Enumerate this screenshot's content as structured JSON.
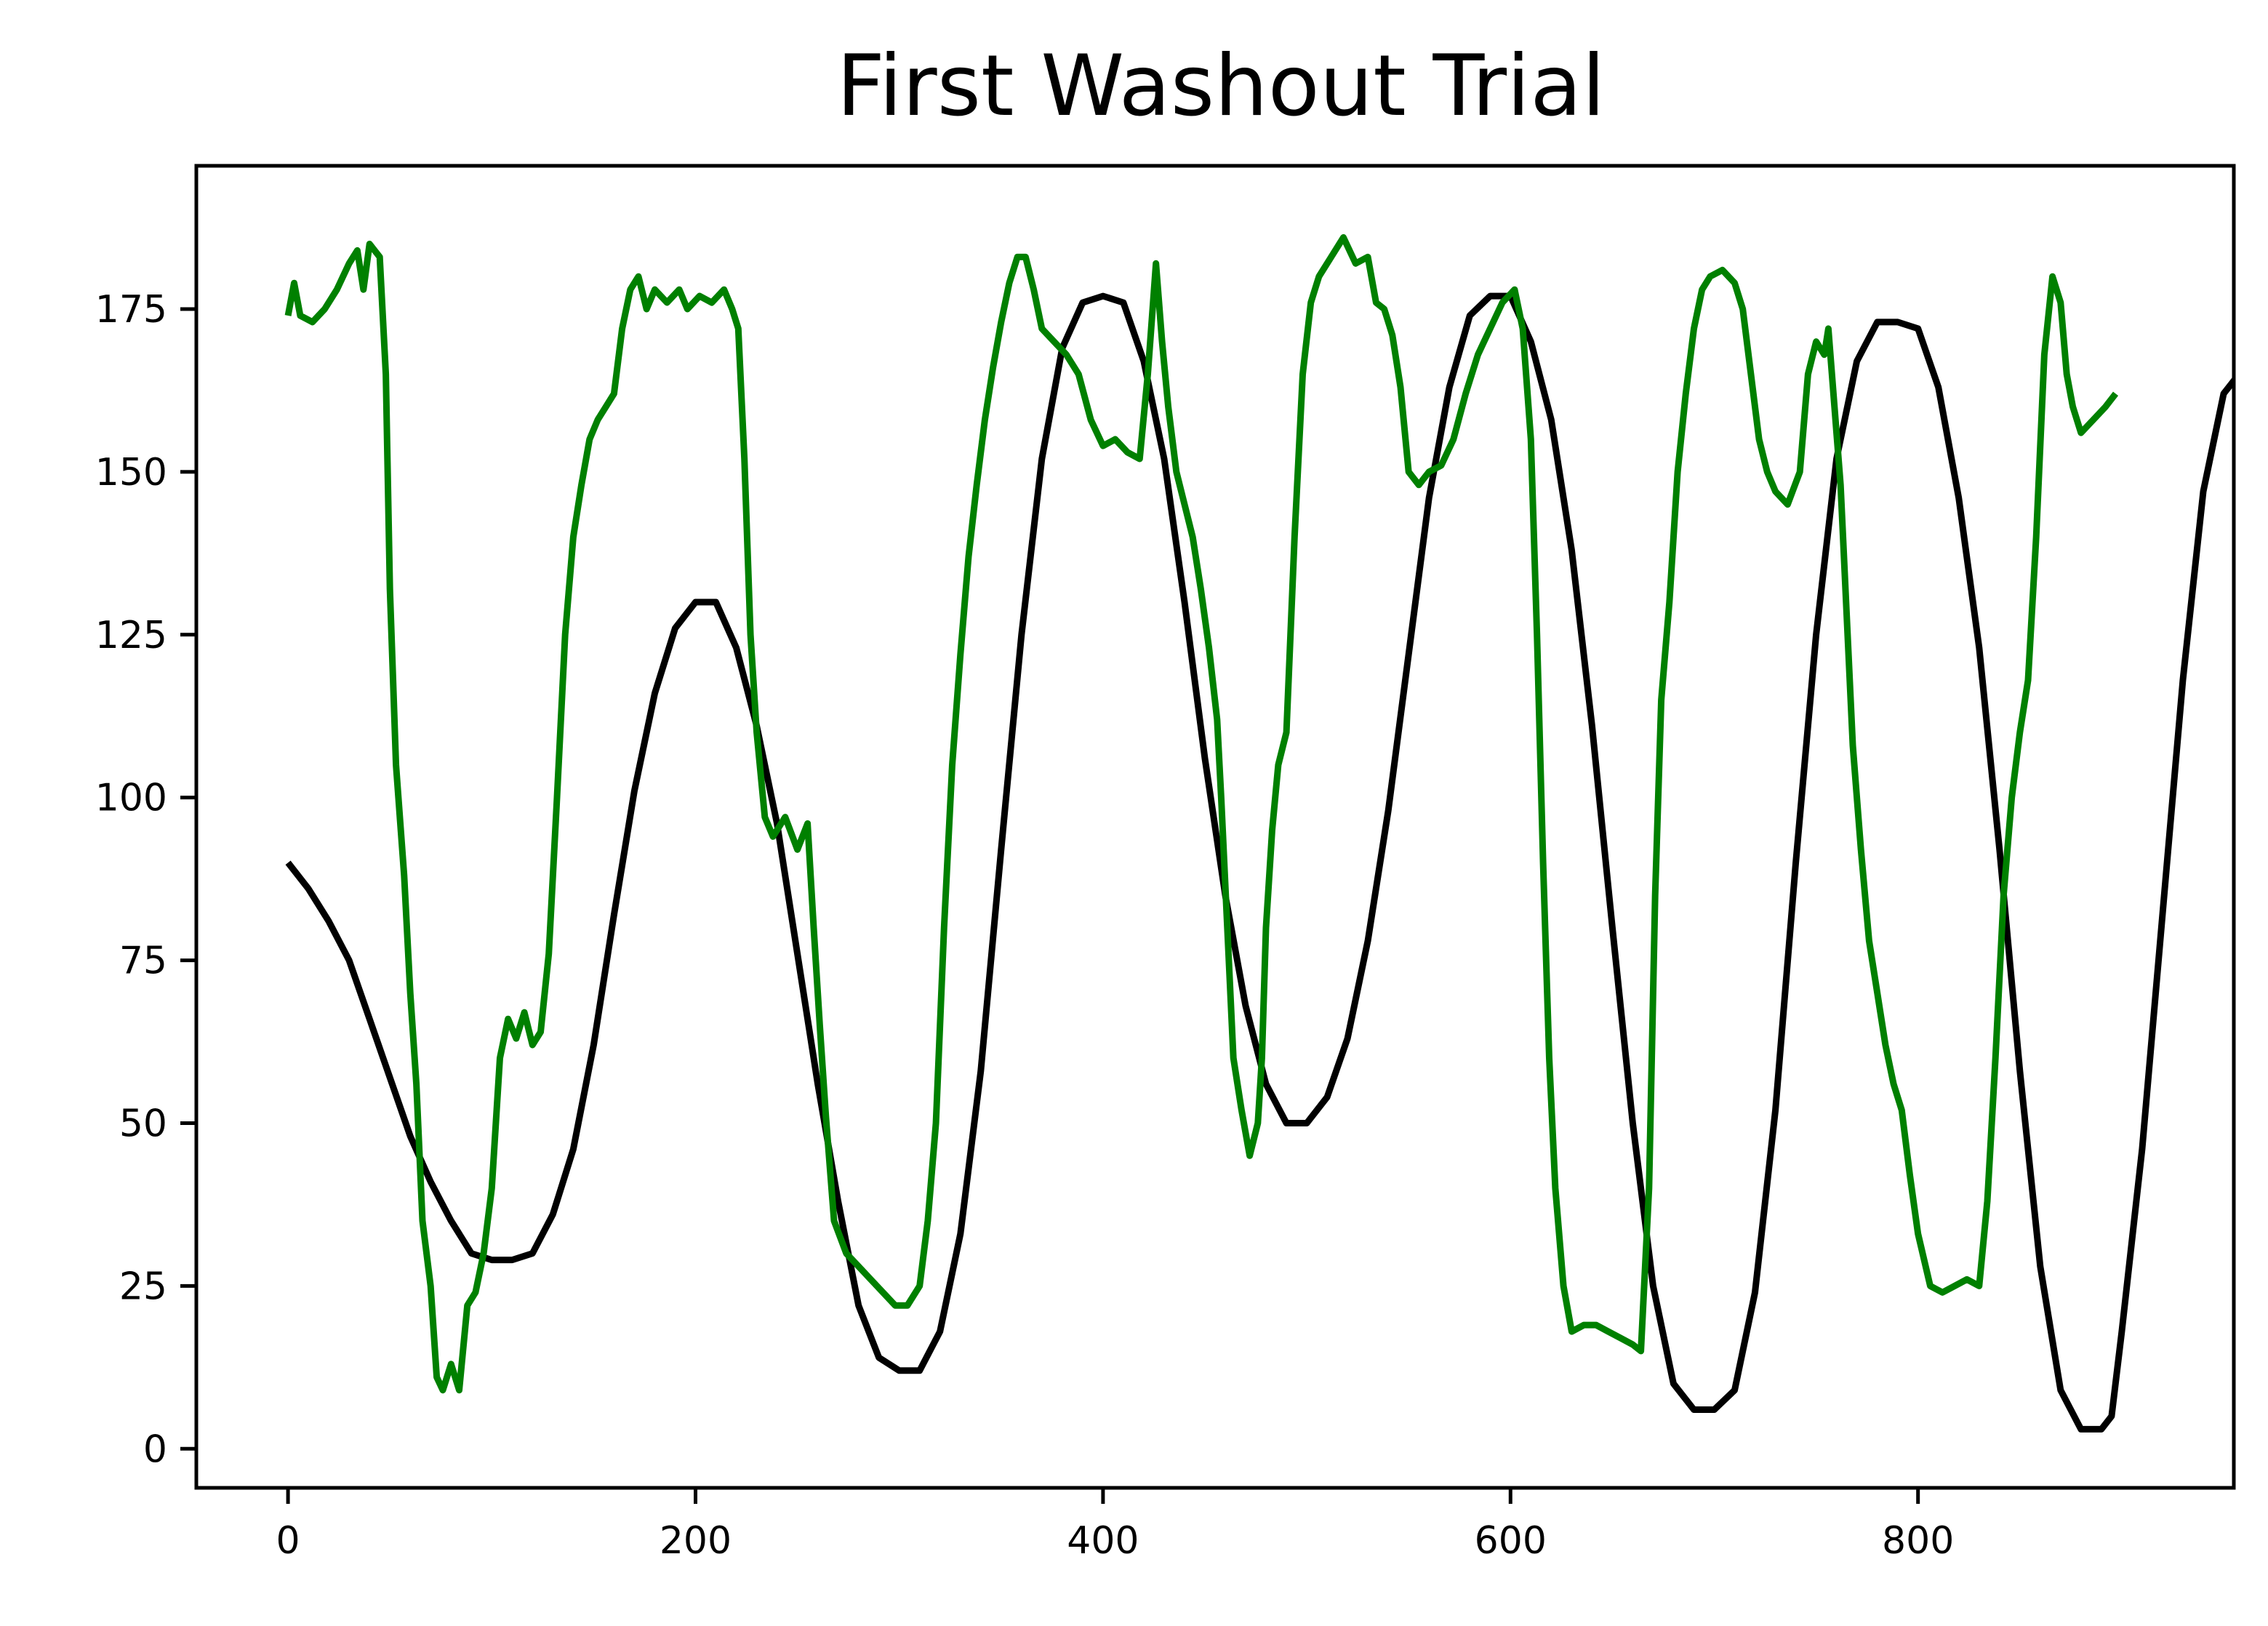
{
  "chart_data": {
    "type": "line",
    "title": "First Washout Trial",
    "xlabel": "",
    "ylabel": "",
    "xlim": [
      -45,
      955
    ],
    "ylim": [
      -6,
      197
    ],
    "grid": false,
    "legend": "none",
    "x_ticks": [
      0,
      200,
      400,
      600,
      800
    ],
    "y_ticks": [
      0,
      25,
      50,
      75,
      100,
      125,
      150,
      175
    ],
    "series": [
      {
        "color": "#000000",
        "points": [
          [
            0,
            90
          ],
          [
            10,
            86
          ],
          [
            20,
            81
          ],
          [
            30,
            75
          ],
          [
            40,
            66
          ],
          [
            50,
            57
          ],
          [
            60,
            48
          ],
          [
            70,
            41
          ],
          [
            80,
            35
          ],
          [
            90,
            30
          ],
          [
            100,
            29
          ],
          [
            110,
            29
          ],
          [
            120,
            30
          ],
          [
            130,
            36
          ],
          [
            140,
            46
          ],
          [
            150,
            62
          ],
          [
            160,
            82
          ],
          [
            170,
            101
          ],
          [
            180,
            116
          ],
          [
            190,
            126
          ],
          [
            200,
            130
          ],
          [
            210,
            130
          ],
          [
            220,
            123
          ],
          [
            230,
            111
          ],
          [
            240,
            96
          ],
          [
            250,
            76
          ],
          [
            260,
            56
          ],
          [
            270,
            38
          ],
          [
            280,
            22
          ],
          [
            290,
            14
          ],
          [
            300,
            12
          ],
          [
            310,
            12
          ],
          [
            320,
            18
          ],
          [
            330,
            33
          ],
          [
            340,
            58
          ],
          [
            350,
            92
          ],
          [
            360,
            125
          ],
          [
            370,
            152
          ],
          [
            380,
            169
          ],
          [
            390,
            176
          ],
          [
            400,
            177
          ],
          [
            410,
            176
          ],
          [
            420,
            167
          ],
          [
            430,
            152
          ],
          [
            440,
            130
          ],
          [
            450,
            106
          ],
          [
            460,
            85
          ],
          [
            470,
            68
          ],
          [
            480,
            56
          ],
          [
            490,
            50
          ],
          [
            500,
            50
          ],
          [
            510,
            54
          ],
          [
            520,
            63
          ],
          [
            530,
            78
          ],
          [
            540,
            98
          ],
          [
            550,
            122
          ],
          [
            560,
            146
          ],
          [
            570,
            163
          ],
          [
            580,
            174
          ],
          [
            590,
            177
          ],
          [
            600,
            177
          ],
          [
            610,
            170
          ],
          [
            620,
            158
          ],
          [
            630,
            138
          ],
          [
            640,
            111
          ],
          [
            650,
            80
          ],
          [
            660,
            50
          ],
          [
            670,
            25
          ],
          [
            680,
            10
          ],
          [
            690,
            6
          ],
          [
            700,
            6
          ],
          [
            710,
            9
          ],
          [
            720,
            24
          ],
          [
            730,
            52
          ],
          [
            740,
            90
          ],
          [
            750,
            125
          ],
          [
            760,
            152
          ],
          [
            770,
            167
          ],
          [
            780,
            173
          ],
          [
            790,
            173
          ],
          [
            800,
            172
          ],
          [
            810,
            163
          ],
          [
            820,
            146
          ],
          [
            830,
            123
          ],
          [
            840,
            92
          ],
          [
            850,
            58
          ],
          [
            860,
            28
          ],
          [
            870,
            9
          ],
          [
            880,
            3
          ],
          [
            890,
            3
          ],
          [
            895,
            5
          ],
          [
            900,
            18
          ],
          [
            910,
            46
          ],
          [
            920,
            82
          ],
          [
            930,
            118
          ],
          [
            940,
            147
          ],
          [
            950,
            162
          ],
          [
            960,
            166
          ],
          [
            968,
            166
          ]
        ]
      },
      {
        "color": "#008000",
        "points": [
          [
            0,
            174
          ],
          [
            3,
            179
          ],
          [
            6,
            174
          ],
          [
            12,
            173
          ],
          [
            18,
            175
          ],
          [
            24,
            178
          ],
          [
            30,
            182
          ],
          [
            34,
            184
          ],
          [
            37,
            178
          ],
          [
            40,
            185
          ],
          [
            45,
            183
          ],
          [
            48,
            165
          ],
          [
            50,
            132
          ],
          [
            53,
            105
          ],
          [
            57,
            88
          ],
          [
            60,
            70
          ],
          [
            63,
            56
          ],
          [
            66,
            35
          ],
          [
            70,
            25
          ],
          [
            73,
            11
          ],
          [
            76,
            9
          ],
          [
            80,
            13
          ],
          [
            84,
            9
          ],
          [
            88,
            22
          ],
          [
            92,
            24
          ],
          [
            96,
            30
          ],
          [
            100,
            40
          ],
          [
            104,
            60
          ],
          [
            108,
            66
          ],
          [
            112,
            63
          ],
          [
            116,
            67
          ],
          [
            120,
            62
          ],
          [
            124,
            64
          ],
          [
            128,
            76
          ],
          [
            132,
            100
          ],
          [
            136,
            125
          ],
          [
            140,
            140
          ],
          [
            144,
            148
          ],
          [
            148,
            155
          ],
          [
            152,
            158
          ],
          [
            156,
            160
          ],
          [
            160,
            162
          ],
          [
            164,
            172
          ],
          [
            168,
            178
          ],
          [
            172,
            180
          ],
          [
            176,
            175
          ],
          [
            180,
            178
          ],
          [
            186,
            176
          ],
          [
            192,
            178
          ],
          [
            196,
            175
          ],
          [
            202,
            177
          ],
          [
            208,
            176
          ],
          [
            214,
            178
          ],
          [
            218,
            175
          ],
          [
            221,
            172
          ],
          [
            224,
            152
          ],
          [
            227,
            125
          ],
          [
            230,
            110
          ],
          [
            234,
            97
          ],
          [
            238,
            94
          ],
          [
            244,
            97
          ],
          [
            250,
            92
          ],
          [
            255,
            96
          ],
          [
            258,
            80
          ],
          [
            261,
            65
          ],
          [
            264,
            51
          ],
          [
            268,
            35
          ],
          [
            274,
            30
          ],
          [
            280,
            28
          ],
          [
            286,
            26
          ],
          [
            292,
            24
          ],
          [
            298,
            22
          ],
          [
            304,
            22
          ],
          [
            310,
            25
          ],
          [
            314,
            35
          ],
          [
            318,
            50
          ],
          [
            322,
            80
          ],
          [
            326,
            105
          ],
          [
            330,
            122
          ],
          [
            334,
            137
          ],
          [
            338,
            148
          ],
          [
            342,
            158
          ],
          [
            346,
            166
          ],
          [
            350,
            173
          ],
          [
            354,
            179
          ],
          [
            358,
            183
          ],
          [
            362,
            183
          ],
          [
            366,
            178
          ],
          [
            370,
            172
          ],
          [
            376,
            170
          ],
          [
            382,
            168
          ],
          [
            388,
            165
          ],
          [
            394,
            158
          ],
          [
            400,
            154
          ],
          [
            406,
            155
          ],
          [
            412,
            153
          ],
          [
            418,
            152
          ],
          [
            422,
            165
          ],
          [
            426,
            182
          ],
          [
            429,
            170
          ],
          [
            432,
            160
          ],
          [
            436,
            150
          ],
          [
            440,
            145
          ],
          [
            444,
            140
          ],
          [
            448,
            132
          ],
          [
            452,
            123
          ],
          [
            456,
            112
          ],
          [
            458,
            100
          ],
          [
            461,
            80
          ],
          [
            464,
            60
          ],
          [
            468,
            52
          ],
          [
            472,
            45
          ],
          [
            476,
            50
          ],
          [
            478,
            60
          ],
          [
            480,
            80
          ],
          [
            483,
            95
          ],
          [
            486,
            105
          ],
          [
            490,
            110
          ],
          [
            494,
            140
          ],
          [
            498,
            165
          ],
          [
            502,
            176
          ],
          [
            506,
            180
          ],
          [
            512,
            183
          ],
          [
            518,
            186
          ],
          [
            524,
            182
          ],
          [
            530,
            183
          ],
          [
            534,
            176
          ],
          [
            538,
            175
          ],
          [
            542,
            171
          ],
          [
            546,
            163
          ],
          [
            550,
            150
          ],
          [
            555,
            148
          ],
          [
            560,
            150
          ],
          [
            566,
            151
          ],
          [
            572,
            155
          ],
          [
            578,
            162
          ],
          [
            584,
            168
          ],
          [
            590,
            172
          ],
          [
            596,
            176
          ],
          [
            602,
            178
          ],
          [
            606,
            172
          ],
          [
            610,
            155
          ],
          [
            613,
            125
          ],
          [
            616,
            90
          ],
          [
            619,
            60
          ],
          [
            622,
            40
          ],
          [
            626,
            25
          ],
          [
            630,
            18
          ],
          [
            636,
            19
          ],
          [
            642,
            19
          ],
          [
            648,
            18
          ],
          [
            654,
            17
          ],
          [
            660,
            16
          ],
          [
            664,
            15
          ],
          [
            668,
            40
          ],
          [
            671,
            85
          ],
          [
            674,
            115
          ],
          [
            678,
            130
          ],
          [
            682,
            150
          ],
          [
            686,
            162
          ],
          [
            690,
            172
          ],
          [
            694,
            178
          ],
          [
            698,
            180
          ],
          [
            704,
            181
          ],
          [
            710,
            179
          ],
          [
            714,
            175
          ],
          [
            718,
            165
          ],
          [
            722,
            155
          ],
          [
            726,
            150
          ],
          [
            730,
            147
          ],
          [
            736,
            145
          ],
          [
            742,
            150
          ],
          [
            746,
            165
          ],
          [
            750,
            170
          ],
          [
            754,
            168
          ],
          [
            756,
            172
          ],
          [
            759,
            160
          ],
          [
            762,
            148
          ],
          [
            765,
            128
          ],
          [
            768,
            108
          ],
          [
            772,
            92
          ],
          [
            776,
            78
          ],
          [
            780,
            70
          ],
          [
            784,
            62
          ],
          [
            788,
            56
          ],
          [
            792,
            52
          ],
          [
            796,
            42
          ],
          [
            800,
            33
          ],
          [
            806,
            25
          ],
          [
            812,
            24
          ],
          [
            818,
            25
          ],
          [
            824,
            26
          ],
          [
            830,
            25
          ],
          [
            834,
            38
          ],
          [
            838,
            60
          ],
          [
            842,
            85
          ],
          [
            846,
            100
          ],
          [
            850,
            110
          ],
          [
            854,
            118
          ],
          [
            858,
            140
          ],
          [
            862,
            168
          ],
          [
            866,
            180
          ],
          [
            870,
            176
          ],
          [
            873,
            165
          ],
          [
            876,
            160
          ],
          [
            880,
            156
          ],
          [
            886,
            158
          ],
          [
            892,
            160
          ],
          [
            897,
            162
          ]
        ]
      }
    ]
  }
}
